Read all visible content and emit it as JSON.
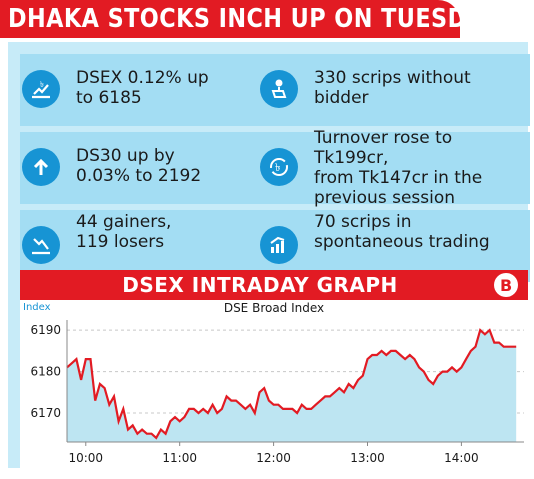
{
  "headline": "DHAKA STOCKS INCH UP ON TUESDAY",
  "stats": [
    {
      "icon": "chart-up-taka-icon",
      "text": [
        "DSEX 0.12% up",
        "to 6185"
      ]
    },
    {
      "icon": "hand-gavel-icon",
      "text": [
        "330 scrips without",
        "bidder"
      ]
    },
    {
      "icon": "arrow-up-icon",
      "text": [
        "DS30 up by",
        "0.03% to 2192"
      ]
    },
    {
      "icon": "cycle-taka-icon",
      "text": [
        "Turnover rose to Tk199cr,",
        "from Tk147cr in the",
        "previous session"
      ]
    },
    {
      "icon": "chart-down-icon",
      "text": [
        "44 gainers,",
        "119 losers"
      ]
    },
    {
      "icon": "bar-chart-up-icon",
      "text": [
        "70 scrips in",
        "spontaneous trading"
      ]
    }
  ],
  "colors": {
    "brand_red": "#e21b23",
    "panel": "#c7ebf8",
    "card": "#a3ddf3",
    "icon": "#1794d4",
    "area": "#bde5f2",
    "line": "#e21b23"
  },
  "chart_data": {
    "type": "area",
    "title": "DSEX INTRADAY GRAPH",
    "subtitle": "DSE Broad Index",
    "ylabel": "Index",
    "xlabel": "",
    "ylim": [
      6163,
      6191
    ],
    "yticks": [
      6170,
      6180,
      6190
    ],
    "xticks": [
      "10:00",
      "11:00",
      "12:00",
      "13:00",
      "14:00"
    ],
    "x_start": "09:48",
    "x_end": "14:40",
    "grid": "y-dashed",
    "series": [
      {
        "values_by_time": [
          [
            "09:48",
            6181
          ],
          [
            "09:51",
            6182
          ],
          [
            "09:54",
            6183
          ],
          [
            "09:57",
            6178
          ],
          [
            "10:00",
            6183
          ],
          [
            "10:03",
            6183
          ],
          [
            "10:06",
            6173
          ],
          [
            "10:09",
            6177
          ],
          [
            "10:12",
            6176
          ],
          [
            "10:15",
            6172
          ],
          [
            "10:18",
            6174
          ],
          [
            "10:21",
            6168
          ],
          [
            "10:24",
            6171
          ],
          [
            "10:27",
            6166
          ],
          [
            "10:30",
            6167
          ],
          [
            "10:33",
            6165
          ],
          [
            "10:36",
            6166
          ],
          [
            "10:39",
            6165
          ],
          [
            "10:42",
            6165
          ],
          [
            "10:45",
            6164
          ],
          [
            "10:48",
            6166
          ],
          [
            "10:51",
            6165
          ],
          [
            "10:54",
            6168
          ],
          [
            "10:57",
            6169
          ],
          [
            "11:00",
            6168
          ],
          [
            "11:03",
            6169
          ],
          [
            "11:06",
            6171
          ],
          [
            "11:09",
            6171
          ],
          [
            "11:12",
            6170
          ],
          [
            "11:15",
            6171
          ],
          [
            "11:18",
            6170
          ],
          [
            "11:21",
            6172
          ],
          [
            "11:24",
            6170
          ],
          [
            "11:27",
            6171
          ],
          [
            "11:30",
            6174
          ],
          [
            "11:33",
            6173
          ],
          [
            "11:36",
            6173
          ],
          [
            "11:39",
            6172
          ],
          [
            "11:42",
            6171
          ],
          [
            "11:45",
            6172
          ],
          [
            "11:48",
            6170
          ],
          [
            "11:51",
            6175
          ],
          [
            "11:54",
            6176
          ],
          [
            "11:57",
            6173
          ],
          [
            "12:00",
            6172
          ],
          [
            "12:03",
            6172
          ],
          [
            "12:06",
            6171
          ],
          [
            "12:09",
            6171
          ],
          [
            "12:12",
            6171
          ],
          [
            "12:15",
            6170
          ],
          [
            "12:18",
            6172
          ],
          [
            "12:21",
            6171
          ],
          [
            "12:24",
            6171
          ],
          [
            "12:27",
            6172
          ],
          [
            "12:30",
            6173
          ],
          [
            "12:33",
            6174
          ],
          [
            "12:36",
            6174
          ],
          [
            "12:39",
            6175
          ],
          [
            "12:42",
            6176
          ],
          [
            "12:45",
            6175
          ],
          [
            "12:48",
            6177
          ],
          [
            "12:51",
            6176
          ],
          [
            "12:54",
            6178
          ],
          [
            "12:57",
            6179
          ],
          [
            "13:00",
            6183
          ],
          [
            "13:03",
            6184
          ],
          [
            "13:06",
            6184
          ],
          [
            "13:09",
            6185
          ],
          [
            "13:12",
            6184
          ],
          [
            "13:15",
            6185
          ],
          [
            "13:18",
            6185
          ],
          [
            "13:21",
            6184
          ],
          [
            "13:24",
            6183
          ],
          [
            "13:27",
            6184
          ],
          [
            "13:30",
            6183
          ],
          [
            "13:33",
            6181
          ],
          [
            "13:36",
            6180
          ],
          [
            "13:39",
            6178
          ],
          [
            "13:42",
            6177
          ],
          [
            "13:45",
            6179
          ],
          [
            "13:48",
            6180
          ],
          [
            "13:51",
            6180
          ],
          [
            "13:54",
            6181
          ],
          [
            "13:57",
            6180
          ],
          [
            "14:00",
            6181
          ],
          [
            "14:03",
            6183
          ],
          [
            "14:06",
            6185
          ],
          [
            "14:09",
            6186
          ],
          [
            "14:12",
            6190
          ],
          [
            "14:15",
            6189
          ],
          [
            "14:18",
            6190
          ],
          [
            "14:21",
            6187
          ],
          [
            "14:24",
            6187
          ],
          [
            "14:27",
            6186
          ],
          [
            "14:30",
            6186
          ],
          [
            "14:35",
            6186
          ]
        ]
      }
    ]
  }
}
